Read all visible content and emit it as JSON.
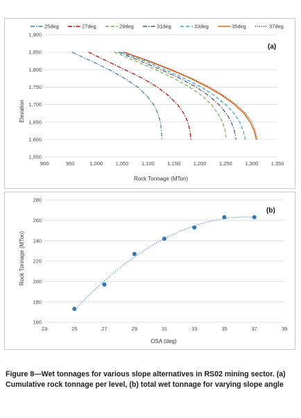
{
  "chart_data": [
    {
      "type": "line",
      "panel_label": "(a)",
      "xlabel": "Rock Tonnage (MTon)",
      "ylabel": "Elevation",
      "xlim": [
        900,
        1350
      ],
      "ylim": [
        1550,
        1900
      ],
      "x_ticks": [
        "900",
        "950",
        "1,000",
        "1,050",
        "1,100",
        "1,150",
        "1,200",
        "1,250",
        "1,300",
        "1,350"
      ],
      "y_ticks": [
        "1,550",
        "1,600",
        "1,650",
        "1,700",
        "1,750",
        "1,800",
        "1,850",
        "1,900"
      ],
      "grid": "horizontal",
      "legend_position": "top",
      "series": [
        {
          "name": "25deg",
          "color": "#2e75b6",
          "dash": "dashdot",
          "points": [
            [
              953,
              1850
            ],
            [
              990,
              1825
            ],
            [
              1025,
              1800
            ],
            [
              1055,
              1775
            ],
            [
              1080,
              1750
            ],
            [
              1098,
              1725
            ],
            [
              1111,
              1700
            ],
            [
              1119,
              1675
            ],
            [
              1124,
              1650
            ],
            [
              1126,
              1625
            ],
            [
              1127,
              1600
            ]
          ]
        },
        {
          "name": "27deg",
          "color": "#c00000",
          "dash": "dashdot",
          "points": [
            [
              985,
              1850
            ],
            [
              1020,
              1825
            ],
            [
              1055,
              1800
            ],
            [
              1090,
              1775
            ],
            [
              1118,
              1750
            ],
            [
              1140,
              1725
            ],
            [
              1157,
              1700
            ],
            [
              1169,
              1675
            ],
            [
              1177,
              1650
            ],
            [
              1181,
              1625
            ],
            [
              1183,
              1600
            ]
          ]
        },
        {
          "name": "29deg",
          "color": "#70ad47",
          "dash": "dash",
          "points": [
            [
              1035,
              1850
            ],
            [
              1075,
              1825
            ],
            [
              1115,
              1800
            ],
            [
              1150,
              1775
            ],
            [
              1180,
              1750
            ],
            [
              1205,
              1725
            ],
            [
              1222,
              1700
            ],
            [
              1235,
              1675
            ],
            [
              1244,
              1650
            ],
            [
              1249,
              1625
            ],
            [
              1251,
              1600
            ]
          ]
        },
        {
          "name": "31deg",
          "color": "#44546a",
          "dash": "dashdot",
          "points": [
            [
              1043,
              1850
            ],
            [
              1085,
              1825
            ],
            [
              1125,
              1800
            ],
            [
              1162,
              1775
            ],
            [
              1193,
              1750
            ],
            [
              1218,
              1725
            ],
            [
              1237,
              1700
            ],
            [
              1251,
              1675
            ],
            [
              1261,
              1650
            ],
            [
              1267,
              1625
            ],
            [
              1270,
              1600
            ]
          ]
        },
        {
          "name": "33deg",
          "color": "#2e9fd6",
          "dash": "dash",
          "points": [
            [
              1048,
              1850
            ],
            [
              1093,
              1825
            ],
            [
              1133,
              1800
            ],
            [
              1170,
              1775
            ],
            [
              1203,
              1750
            ],
            [
              1229,
              1725
            ],
            [
              1250,
              1700
            ],
            [
              1266,
              1675
            ],
            [
              1277,
              1650
            ],
            [
              1284,
              1625
            ],
            [
              1288,
              1600
            ]
          ]
        },
        {
          "name": "35deg",
          "color": "#e46c0a",
          "dash": "solid",
          "points": [
            [
              1053,
              1850
            ],
            [
              1100,
              1825
            ],
            [
              1143,
              1800
            ],
            [
              1182,
              1775
            ],
            [
              1215,
              1750
            ],
            [
              1244,
              1725
            ],
            [
              1267,
              1700
            ],
            [
              1285,
              1675
            ],
            [
              1297,
              1650
            ],
            [
              1305,
              1625
            ],
            [
              1309,
              1600
            ]
          ]
        },
        {
          "name": "37deg",
          "color": "#7f1f1f",
          "dash": "dot",
          "points": [
            [
              1055,
              1850
            ],
            [
              1102,
              1825
            ],
            [
              1146,
              1800
            ],
            [
              1185,
              1775
            ],
            [
              1219,
              1750
            ],
            [
              1247,
              1725
            ],
            [
              1270,
              1700
            ],
            [
              1288,
              1675
            ],
            [
              1300,
              1650
            ],
            [
              1307,
              1625
            ],
            [
              1311,
              1600
            ]
          ]
        }
      ]
    },
    {
      "type": "scatter",
      "panel_label": "(b)",
      "xlabel": "OSA (deg)",
      "ylabel": "Rock Tonnage (MTon)",
      "xlim": [
        23,
        39
      ],
      "ylim": [
        160,
        280
      ],
      "x_ticks": [
        "23",
        "25",
        "27",
        "29",
        "31",
        "33",
        "35",
        "37",
        "39"
      ],
      "y_ticks": [
        "160",
        "180",
        "200",
        "220",
        "240",
        "260",
        "280"
      ],
      "grid": "horizontal",
      "marker_color": "#2e75b6",
      "trendline": "dotted",
      "x": [
        25,
        27,
        29,
        31,
        33,
        35,
        37
      ],
      "y": [
        173,
        197,
        227,
        242,
        253,
        263,
        263
      ]
    }
  ],
  "caption": "Figure 8—Wet tonnages for various slope alternatives in RS02 mining sector. (a) Cumulative rock tonnage per level, (b) total wet tonnage for varying slope angle"
}
